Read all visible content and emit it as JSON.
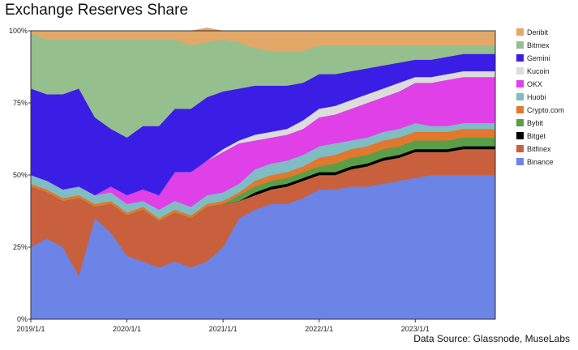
{
  "chart_data": {
    "type": "area",
    "stacked": true,
    "normalized": true,
    "title": "Exchange Reserves Share",
    "source": "Data Source: Glassnode, MuseLabs",
    "xlabel": "",
    "ylabel": "",
    "x": [
      "2019-01",
      "2019-03",
      "2019-05",
      "2019-07",
      "2019-09",
      "2019-11",
      "2020-01",
      "2020-03",
      "2020-05",
      "2020-07",
      "2020-09",
      "2020-11",
      "2021-01",
      "2021-03",
      "2021-05",
      "2021-07",
      "2021-09",
      "2021-11",
      "2022-01",
      "2022-03",
      "2022-05",
      "2022-07",
      "2022-09",
      "2022-11",
      "2023-01",
      "2023-03",
      "2023-05",
      "2023-07",
      "2023-09",
      "2023-11"
    ],
    "x_ticks": [
      "2019/1/1",
      "2020/1/1",
      "2021/1/1",
      "2022/1/1",
      "2023/1/1"
    ],
    "y_ticks": [
      "0%",
      "25%",
      "50%",
      "75%",
      "100%"
    ],
    "ylim": [
      0,
      100
    ],
    "legend_position": "right",
    "series": [
      {
        "name": "Binance",
        "color": "#6b84e6",
        "values": [
          25,
          28,
          25,
          15,
          35,
          30,
          22,
          20,
          18,
          20,
          18,
          20,
          25,
          35,
          38,
          40,
          40,
          42,
          45,
          45,
          46,
          46,
          47,
          48,
          49,
          50,
          50,
          50,
          50,
          50
        ]
      },
      {
        "name": "Bitfinex",
        "color": "#c8603e",
        "values": [
          21,
          16,
          16,
          27,
          4,
          10,
          14,
          18,
          16,
          17,
          17,
          19,
          15,
          6,
          5,
          5,
          6,
          6,
          5,
          5,
          6,
          7,
          8,
          8,
          9,
          8,
          8,
          9,
          9,
          9
        ]
      },
      {
        "name": "Bitget",
        "color": "#000000",
        "values": [
          0,
          0,
          0,
          0,
          0,
          0,
          0,
          0,
          0,
          0,
          0,
          0,
          0,
          0,
          1,
          1,
          1,
          1,
          1,
          1,
          1,
          1,
          1,
          1,
          1,
          1,
          1,
          1,
          1,
          1
        ]
      },
      {
        "name": "Bybit",
        "color": "#5a9e48",
        "values": [
          0,
          0,
          0,
          0,
          0,
          0,
          0,
          0,
          0,
          0,
          0,
          0,
          0,
          2,
          2,
          2,
          2,
          2,
          2,
          3,
          3,
          3,
          3,
          3,
          3,
          3,
          3,
          3,
          3,
          3
        ]
      },
      {
        "name": "Crypto.com",
        "color": "#e0782e",
        "values": [
          1,
          1,
          1,
          1,
          1,
          1,
          1,
          1,
          1,
          1,
          1,
          1,
          1,
          1,
          2,
          2,
          2,
          2,
          3,
          3,
          3,
          3,
          3,
          3,
          3,
          3,
          3,
          3,
          3,
          3
        ]
      },
      {
        "name": "Huobi",
        "color": "#7fbcc4",
        "values": [
          3,
          3,
          3,
          3,
          3,
          3,
          3,
          2,
          3,
          3,
          3,
          3,
          3,
          3,
          4,
          4,
          4,
          4,
          4,
          4,
          3,
          3,
          3,
          3,
          3,
          2,
          2,
          2,
          2,
          2
        ]
      },
      {
        "name": "OKX",
        "color": "#e040e8",
        "values": [
          0,
          0,
          0,
          0,
          0,
          2,
          3,
          4,
          5,
          10,
          12,
          12,
          14,
          14,
          10,
          9,
          9,
          9,
          10,
          10,
          11,
          12,
          12,
          13,
          14,
          15,
          16,
          16,
          16,
          16
        ]
      },
      {
        "name": "Kucoin",
        "color": "#dcdcdc",
        "values": [
          0,
          0,
          0,
          0,
          0,
          0,
          0,
          0,
          0,
          0,
          0,
          0,
          1,
          1,
          2,
          2,
          2,
          3,
          3,
          3,
          3,
          3,
          3,
          3,
          2,
          2,
          2,
          2,
          2,
          2
        ]
      },
      {
        "name": "Gemini",
        "color": "#3a1ee6",
        "values": [
          30,
          30,
          33,
          34,
          27,
          20,
          20,
          22,
          24,
          22,
          22,
          22,
          20,
          18,
          17,
          16,
          15,
          13,
          12,
          11,
          10,
          9,
          8,
          7,
          6,
          6,
          6,
          6,
          6,
          6
        ]
      },
      {
        "name": "Bitmex",
        "color": "#96bf8e",
        "values": [
          19,
          19,
          19,
          17,
          27,
          31,
          34,
          30,
          30,
          24,
          22,
          19,
          18,
          16,
          13,
          12,
          12,
          11,
          10,
          10,
          9,
          8,
          7,
          6,
          5,
          5,
          4,
          3,
          3,
          3
        ]
      },
      {
        "name": "Deribit",
        "color": "#e3a867",
        "values": [
          1,
          3,
          3,
          3,
          3,
          3,
          3,
          3,
          3,
          3,
          5,
          5,
          3,
          4,
          6,
          7,
          7,
          7,
          5,
          5,
          5,
          5,
          5,
          5,
          5,
          5,
          5,
          5,
          5,
          5
        ]
      }
    ],
    "legend_order": [
      "Deribit",
      "Bitmex",
      "Gemini",
      "Kucoin",
      "OKX",
      "Huobi",
      "Crypto.com",
      "Bybit",
      "Bitget",
      "Bitfinex",
      "Binance"
    ]
  }
}
